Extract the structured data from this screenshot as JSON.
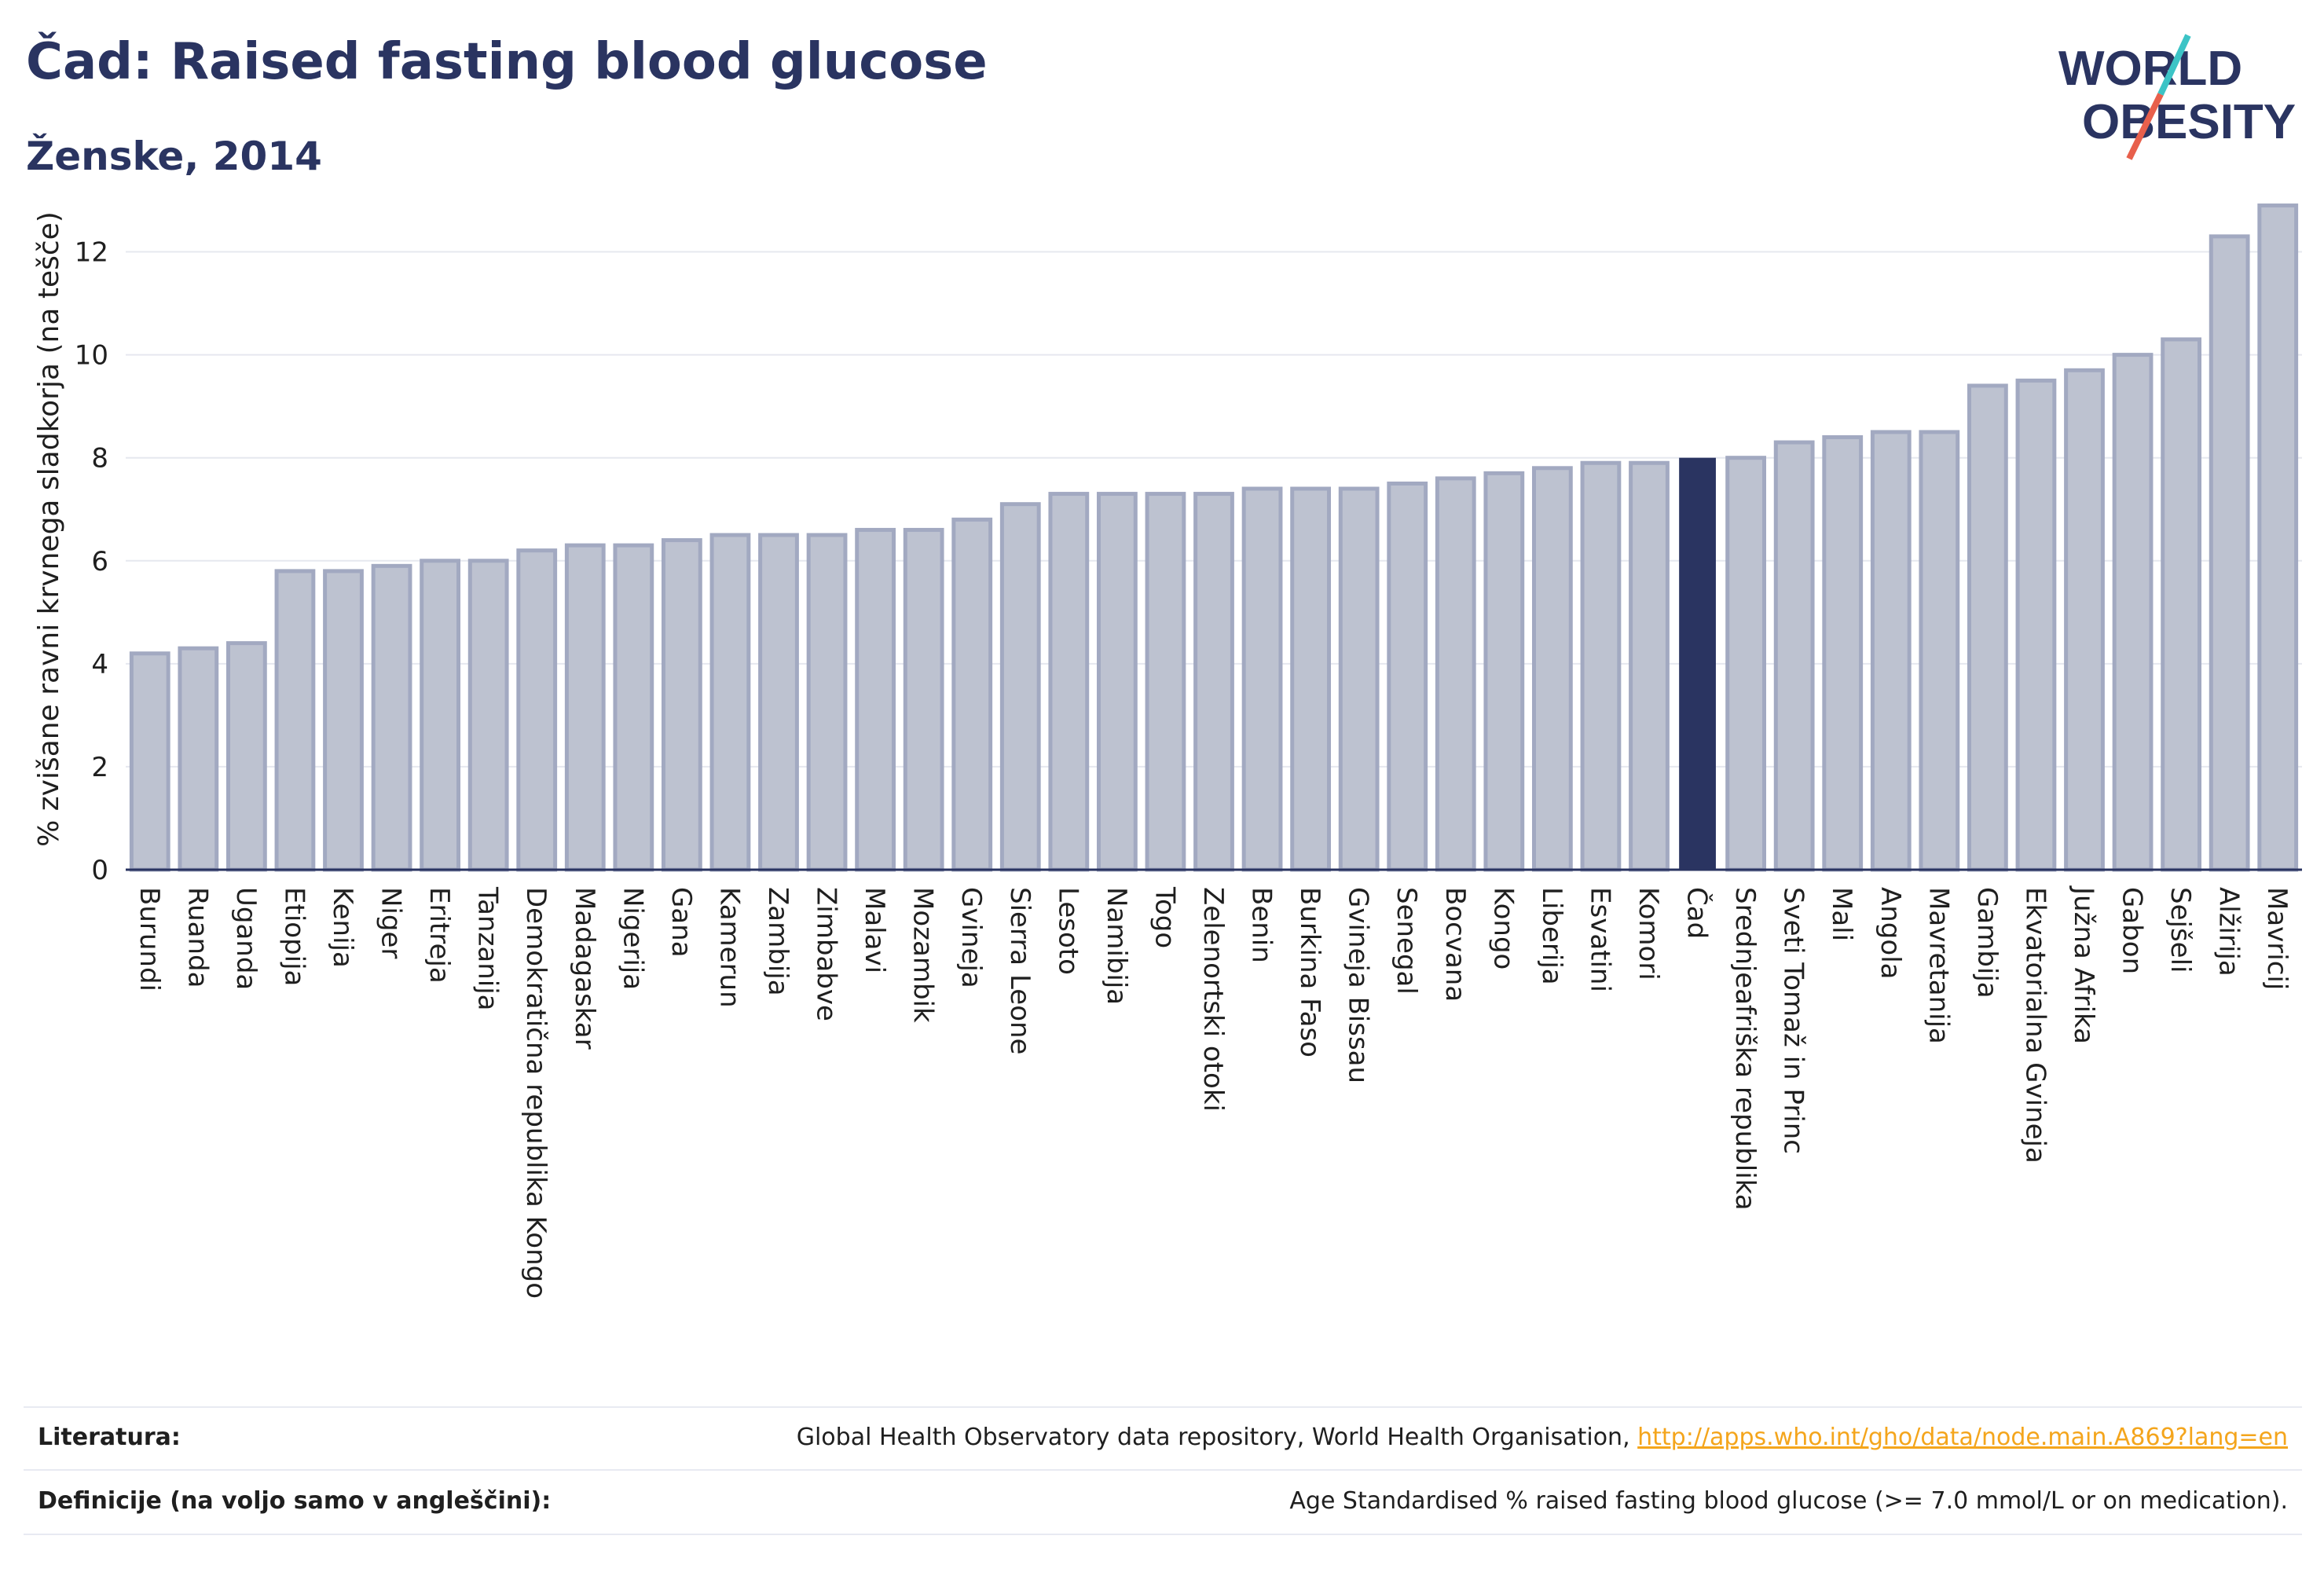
{
  "header": {
    "title": "Čad: Raised fasting blood glucose",
    "subtitle": "Ženske, 2014",
    "logo_line1": "WORLD",
    "logo_line2": "OBESITY"
  },
  "colors": {
    "highlight": "#2a3461",
    "bar_fill": "#bdc2d0",
    "bar_stroke": "#a2a9c1",
    "text": "#2a3461",
    "grid": "#e6e8ef",
    "link": "#f4a51c",
    "logo_slash_teal": "#3cc4c6",
    "logo_slash_red": "#e8604c"
  },
  "chart_data": {
    "type": "bar",
    "ylabel": "% zvišane ravni krvnega sladkorja (na tešče)",
    "ylim": [
      0,
      13
    ],
    "yticks": [
      0,
      2,
      4,
      6,
      8,
      10,
      12
    ],
    "highlight_category": "Čad",
    "grid": "horizontal",
    "categories": [
      "Burundi",
      "Ruanda",
      "Uganda",
      "Etiopija",
      "Kenija",
      "Niger",
      "Eritreja",
      "Tanzanija",
      "Demokratična republika Kongo",
      "Madagaskar",
      "Nigerija",
      "Gana",
      "Kamerun",
      "Zambija",
      "Zimbabve",
      "Malavi",
      "Mozambik",
      "Gvineja",
      "Sierra Leone",
      "Lesoto",
      "Namibija",
      "Togo",
      "Zelenortski otoki",
      "Benin",
      "Burkina Faso",
      "Gvineja Bissau",
      "Senegal",
      "Bocvana",
      "Kongo",
      "Liberija",
      "Esvatini",
      "Komori",
      "Čad",
      "Srednjeafriška republika",
      "Sveti Tomaž in Princ",
      "Mali",
      "Angola",
      "Mavretanija",
      "Gambija",
      "Ekvatorialna Gvineja",
      "Južna Afrika",
      "Gabon",
      "Sejšeli",
      "Alžirija",
      "Mavricij"
    ],
    "values": [
      4.2,
      4.3,
      4.4,
      5.8,
      5.8,
      5.9,
      6.0,
      6.0,
      6.2,
      6.3,
      6.3,
      6.4,
      6.5,
      6.5,
      6.5,
      6.6,
      6.6,
      6.8,
      7.1,
      7.3,
      7.3,
      7.3,
      7.3,
      7.4,
      7.4,
      7.4,
      7.5,
      7.6,
      7.7,
      7.8,
      7.9,
      7.9,
      8.0,
      8.0,
      8.3,
      8.4,
      8.5,
      8.5,
      9.4,
      9.5,
      9.7,
      10.0,
      10.3,
      12.3,
      12.9
    ]
  },
  "footer": {
    "references_label": "Literatura:",
    "references_text": "Global Health Observatory data repository, World Health Organisation, ",
    "references_link": "http://apps.who.int/gho/data/node.main.A869?lang=en",
    "definitions_label": "Definicije (na voljo samo v angleščini):",
    "definitions_text": "Age Standardised % raised fasting blood glucose (>= 7.0 mmol/L or on medication)."
  }
}
